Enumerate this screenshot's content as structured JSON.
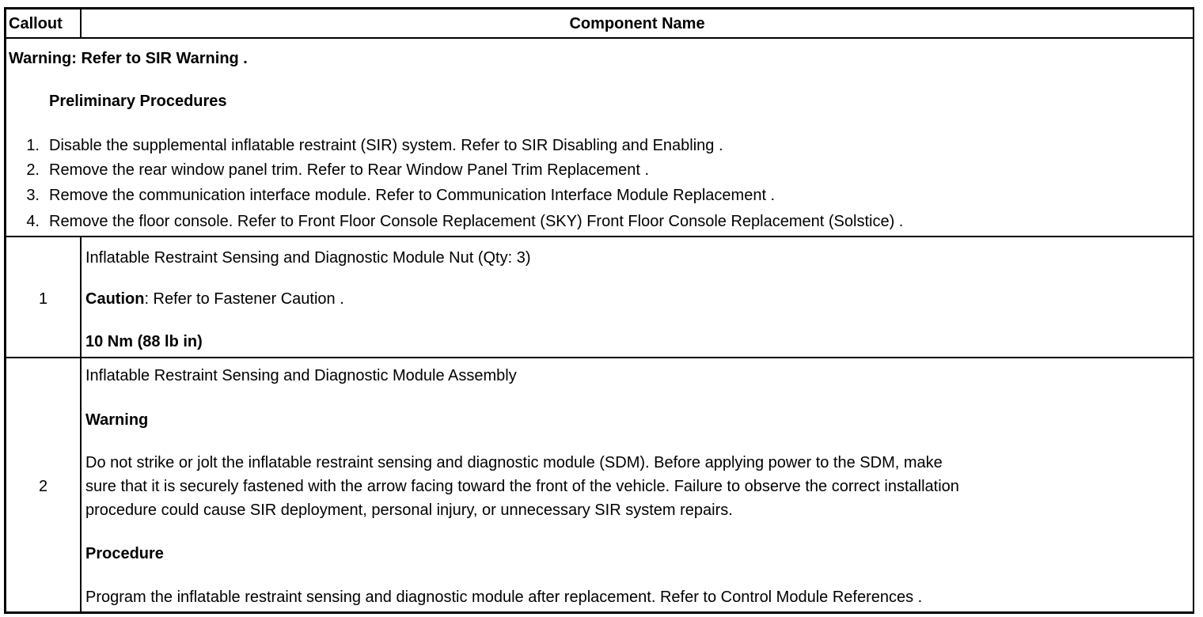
{
  "table": {
    "headers": {
      "callout": "Callout",
      "component": "Component Name"
    },
    "preliminary": {
      "warning_label": "Warning:",
      "warning_text": "Refer to SIR Warning .",
      "heading": "Preliminary Procedures",
      "steps": [
        {
          "n": "1.",
          "text": "Disable the supplemental inflatable restraint (SIR) system. Refer to SIR Disabling and Enabling ."
        },
        {
          "n": "2.",
          "text": "Remove the rear window panel trim. Refer to Rear Window Panel Trim Replacement ."
        },
        {
          "n": "3.",
          "text": "Remove the communication interface module. Refer to Communication Interface Module Replacement ."
        },
        {
          "n": "4.",
          "text": "Remove the floor console. Refer to Front Floor Console Replacement (SKY) Front Floor Console Replacement (Solstice) ."
        }
      ]
    },
    "rows": [
      {
        "callout": "1",
        "name": "Inflatable Restraint Sensing and Diagnostic Module Nut (Qty: 3)",
        "caution_label": "Caution",
        "caution_text": ": Refer to Fastener Caution .",
        "torque": "10 Nm (88 lb in)"
      },
      {
        "callout": "2",
        "name": "Inflatable Restraint Sensing and Diagnostic Module Assembly",
        "warning_heading": "Warning",
        "warning_lines": [
          "Do not strike or jolt the inflatable restraint sensing and diagnostic module (SDM). Before applying power to the SDM, make",
          "sure that it is securely fastened with the arrow facing toward the front of the vehicle. Failure to observe the correct installation",
          "procedure could cause SIR deployment, personal injury, or unnecessary SIR system repairs."
        ],
        "procedure_heading": "Procedure",
        "procedure_text": "Program the inflatable restraint sensing and diagnostic module after replacement. Refer to Control Module References ."
      }
    ]
  }
}
